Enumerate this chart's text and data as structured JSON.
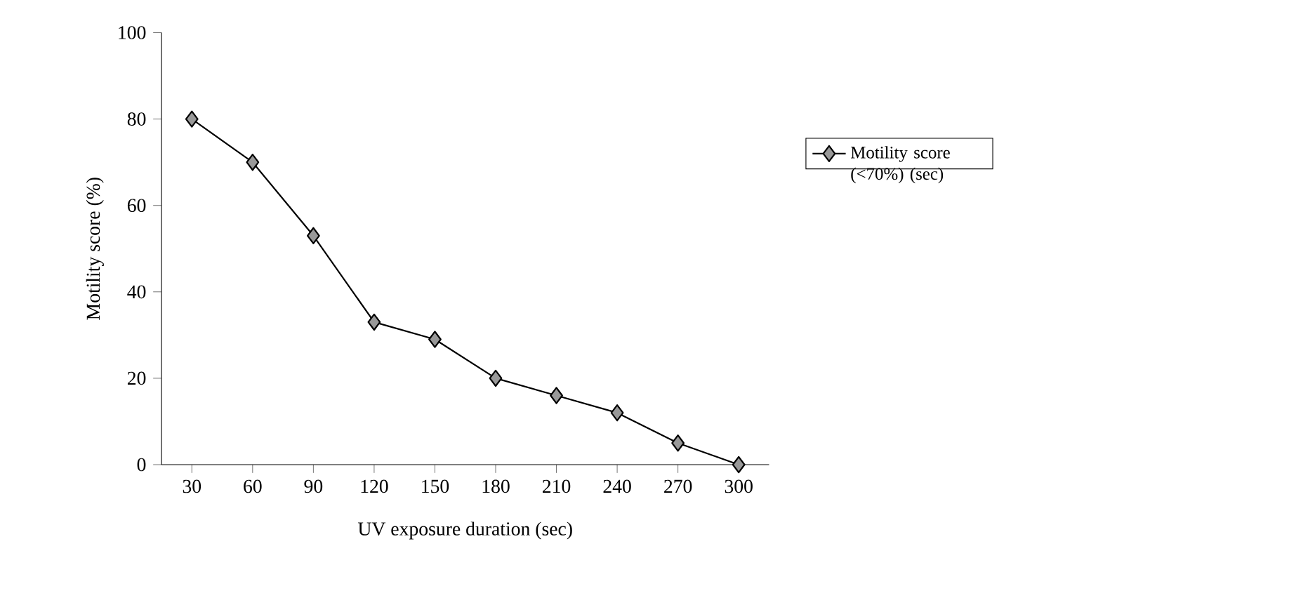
{
  "chart_data": {
    "type": "line",
    "xlabel": "UV exposure duration (sec)",
    "ylabel": "Motility score  (%)",
    "categories": [
      "30",
      "60",
      "90",
      "120",
      "150",
      "180",
      "210",
      "240",
      "270",
      "300"
    ],
    "series": [
      {
        "name": "Motility score (<70%) (sec)",
        "color": "#000000",
        "values": [
          80,
          70,
          53,
          33,
          29,
          20,
          16,
          12,
          5,
          0
        ]
      }
    ],
    "ylim": [
      0,
      100
    ],
    "yticks": [
      0,
      20,
      40,
      60,
      80,
      100
    ],
    "marker": "diamond",
    "legend": "right",
    "grid": false
  }
}
